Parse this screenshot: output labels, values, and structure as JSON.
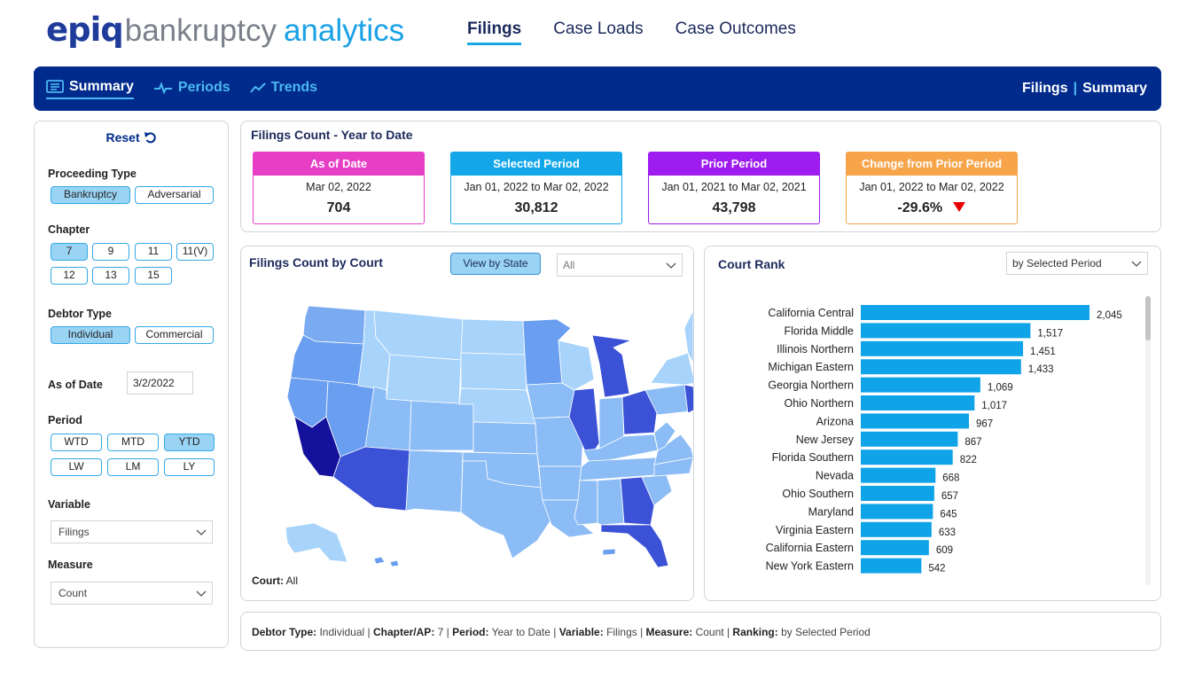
{
  "logo": {
    "brand": "epiq",
    "word1": "bankruptcy",
    "word2": "analytics"
  },
  "top_nav": [
    {
      "label": "Filings",
      "active": true
    },
    {
      "label": "Case Loads",
      "active": false
    },
    {
      "label": "Case Outcomes",
      "active": false
    }
  ],
  "subtabs": [
    {
      "label": "Summary",
      "icon": "summary-icon",
      "active": true
    },
    {
      "label": "Periods",
      "icon": "periods-icon",
      "active": false
    },
    {
      "label": "Trends",
      "icon": "trends-icon",
      "active": false
    }
  ],
  "breadcrumb": {
    "section": "Filings",
    "separator": "|",
    "page": "Summary"
  },
  "filters": {
    "reset_label": "Reset",
    "proceeding_type": {
      "label": "Proceeding Type",
      "options": [
        "Bankruptcy",
        "Adversarial"
      ],
      "selected": "Bankruptcy"
    },
    "chapter": {
      "label": "Chapter",
      "options": [
        "7",
        "9",
        "11",
        "11(V)",
        "12",
        "13",
        "15"
      ],
      "selected": "7"
    },
    "debtor_type": {
      "label": "Debtor Type",
      "options": [
        "Individual",
        "Commercial"
      ],
      "selected": "Individual"
    },
    "as_of_date": {
      "label": "As of Date",
      "value": "3/2/2022"
    },
    "period": {
      "label": "Period",
      "options": [
        "WTD",
        "MTD",
        "YTD",
        "LW",
        "LM",
        "LY"
      ],
      "selected": "YTD"
    },
    "variable": {
      "label": "Variable",
      "value": "Filings"
    },
    "measure": {
      "label": "Measure",
      "value": "Count"
    }
  },
  "ytd": {
    "title": "Filings Count - Year to Date",
    "cards": [
      {
        "head": "As of Date",
        "date": "Mar 02, 2022",
        "value": "704",
        "color": "#e63fc6"
      },
      {
        "head": "Selected Period",
        "date": "Jan 01, 2022 to Mar 02, 2022",
        "value": "30,812",
        "color": "#13a7ea"
      },
      {
        "head": "Prior Period",
        "date": "Jan 01, 2021 to Mar 02, 2021",
        "value": "43,798",
        "color": "#9e1cf0"
      },
      {
        "head": "Change from Prior Period",
        "date": "Jan 01, 2022 to Mar 02, 2022",
        "value": "-29.6%",
        "color": "#f7a44a",
        "trend": "down"
      }
    ]
  },
  "map": {
    "title": "Filings Count by Court",
    "view_button": "View by State",
    "dropdown_value": "All",
    "court_label": "Court:",
    "court_value": "All",
    "colors": {
      "light": "#a8d3fb",
      "mid": "#6a9ef0",
      "dark": "#3b52d6",
      "darkest": "#14119c"
    }
  },
  "rank": {
    "title": "Court Rank",
    "dropdown_value": "by Selected Period",
    "bar_color": "#0fa3e8"
  },
  "chart_data": {
    "type": "bar",
    "orientation": "horizontal",
    "title": "Court Rank",
    "categories": [
      "California Central",
      "Florida Middle",
      "Illinois Northern",
      "Michigan Eastern",
      "Georgia Northern",
      "Ohio Northern",
      "Arizona",
      "New Jersey",
      "Florida Southern",
      "Nevada",
      "Ohio Southern",
      "Maryland",
      "Virginia Eastern",
      "California Eastern",
      "New York Eastern"
    ],
    "values": [
      2045,
      1517,
      1451,
      1433,
      1069,
      1017,
      967,
      867,
      822,
      668,
      657,
      645,
      633,
      609,
      542
    ],
    "value_labels": [
      "2,045",
      "1,517",
      "1,451",
      "1,433",
      "1,069",
      "1,017",
      "967",
      "867",
      "822",
      "668",
      "657",
      "645",
      "633",
      "609",
      "542"
    ],
    "xlim": [
      0,
      2045
    ],
    "grid": false,
    "legend": "none"
  },
  "footer": {
    "items": [
      {
        "label": "Debtor Type:",
        "value": "Individual"
      },
      {
        "label": "Chapter/AP:",
        "value": "7"
      },
      {
        "label": "Period:",
        "value": "Year to Date"
      },
      {
        "label": "Variable:",
        "value": "Filings"
      },
      {
        "label": "Measure:",
        "value": "Count"
      },
      {
        "label": "Ranking:",
        "value": "by Selected Period"
      }
    ]
  }
}
